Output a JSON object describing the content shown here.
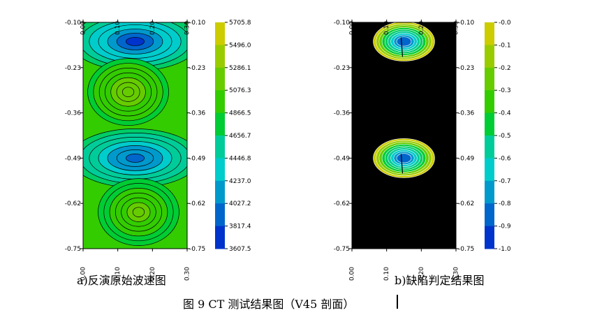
{
  "caption": "图 9      CT 测试结果图（V45 剖面）",
  "chart_data": [
    {
      "type": "heatmap",
      "caption": "a)反演原始波速图",
      "x_ticks": [
        "0.00",
        "0.10",
        "0.20",
        "0.30"
      ],
      "y_ticks": [
        "-0.10",
        "-0.23",
        "-0.36",
        "-0.49",
        "-0.62",
        "-0.75"
      ],
      "xlim": [
        0.0,
        0.3
      ],
      "ylim": [
        -0.75,
        -0.1
      ],
      "colorbar_ticks": [
        "5705.8",
        "5496.0",
        "5286.1",
        "5076.3",
        "4866.5",
        "4656.7",
        "4446.8",
        "4237.0",
        "4027.2",
        "3817.4",
        "3607.5"
      ],
      "colorbar_range": [
        3607.5,
        5705.8
      ],
      "base_value": 4800,
      "features": [
        {
          "kind": "low",
          "x": 0.15,
          "y": -0.155,
          "value": 3850
        },
        {
          "kind": "high",
          "x": 0.13,
          "y": -0.3,
          "value": 5250
        },
        {
          "kind": "low",
          "x": 0.15,
          "y": -0.49,
          "value": 3950
        },
        {
          "kind": "high",
          "x": 0.16,
          "y": -0.645,
          "value": 5150
        }
      ],
      "grid": false
    },
    {
      "type": "heatmap",
      "caption": "b)缺陷判定结果图",
      "x_ticks": [
        "0.00",
        "0.10",
        "0.20",
        "0.30"
      ],
      "y_ticks": [
        "-0.10",
        "-0.23",
        "-0.36",
        "-0.49",
        "-0.62",
        "-0.75"
      ],
      "xlim": [
        0.0,
        0.3
      ],
      "ylim": [
        -0.75,
        -0.1
      ],
      "colorbar_ticks": [
        "-0.0",
        "-0.1",
        "-0.2",
        "-0.3",
        "-0.4",
        "-0.5",
        "-0.6",
        "-0.7",
        "-0.8",
        "-0.9",
        "-1.0"
      ],
      "colorbar_range": [
        -1.0,
        0.0
      ],
      "background_value": 0.0,
      "features": [
        {
          "kind": "defect",
          "x": 0.15,
          "y": -0.155,
          "value": -0.85
        },
        {
          "kind": "defect",
          "x": 0.15,
          "y": -0.49,
          "value": -0.85
        }
      ],
      "grid": false
    }
  ],
  "colors": {
    "colormap": [
      "#0000c8",
      "#0033cc",
      "#0066cc",
      "#0099cc",
      "#00cccc",
      "#00cc99",
      "#00cc66",
      "#00cc33",
      "#33cc00",
      "#66cc00",
      "#99cc00",
      "#cccc00",
      "#ffff00"
    ],
    "background_b": "#000000"
  }
}
